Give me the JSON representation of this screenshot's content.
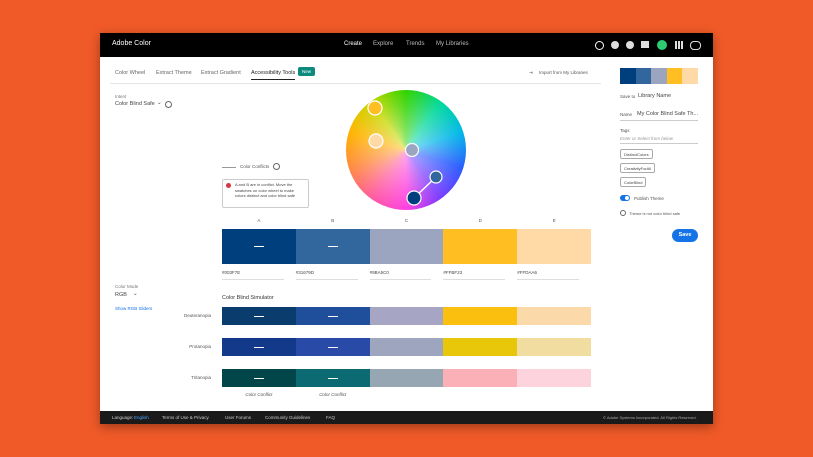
{
  "nav": {
    "logo": "Adobe Color",
    "links": [
      "Create",
      "Explore",
      "Trends",
      "My Libraries"
    ]
  },
  "tabs": {
    "items": [
      "Color Wheel",
      "Extract Theme",
      "Extract Gradient",
      "Accessibility Tools"
    ],
    "badge": "New",
    "import": "Import from My Libraries"
  },
  "left": {
    "intent_label": "Intent",
    "intent_value": "Color Blind Safe",
    "mode_label": "Color Mode",
    "mode_value": "RGB",
    "sliders_link": "Show RGB Sliders"
  },
  "conflicts": {
    "title": "Color Conflicts",
    "message": "A and B are in conflict. Move the swatches on color wheel to make colors distinct and color blind safe"
  },
  "swatches": [
    {
      "letter": "A",
      "hex": "#003F7E"
    },
    {
      "letter": "B",
      "hex": "#31679D"
    },
    {
      "letter": "C",
      "hex": "#9BA5C0"
    },
    {
      "letter": "D",
      "hex": "#FFBF23"
    },
    {
      "letter": "E",
      "hex": "#FFDAA6"
    }
  ],
  "simulator": {
    "title": "Color Blind Simulator",
    "rows": [
      {
        "name": "Deuteranopia",
        "colors": [
          "#0a3d6e",
          "#1f4f9a",
          "#a6a6c4",
          "#fbbf10",
          "#fcd9a9"
        ]
      },
      {
        "name": "Protanopia",
        "colors": [
          "#12398a",
          "#2a4aa8",
          "#9ea5bf",
          "#e8c70a",
          "#f1dd9f"
        ]
      },
      {
        "name": "Tritanopia",
        "colors": [
          "#03464a",
          "#0b6a72",
          "#97a6b3",
          "#fbb0b8",
          "#fdd4dd"
        ]
      }
    ],
    "conflict_labels": [
      "Color Conflict",
      "Color Conflict"
    ]
  },
  "save_panel": {
    "save_to": "Save to",
    "library": "Library Name",
    "name_label": "Name",
    "name_value": "My Color Blind Safe Th...",
    "tags_label": "Tags",
    "tags_placeholder": "Enter or Select from below",
    "tags": [
      "DistinctColors",
      "CreativityForAll",
      "ColorBlind"
    ],
    "publish": "Publish Theme",
    "warning": "Theme is not color blind safe",
    "save_button": "Save"
  },
  "footer": {
    "language_label": "Language:",
    "language": "English",
    "links": [
      "Terms of Use & Privacy",
      "User Forums",
      "Community Guidelines",
      "FAQ"
    ],
    "copyright": "© Adobe Systems Incorporated. All Rights Reserved."
  }
}
